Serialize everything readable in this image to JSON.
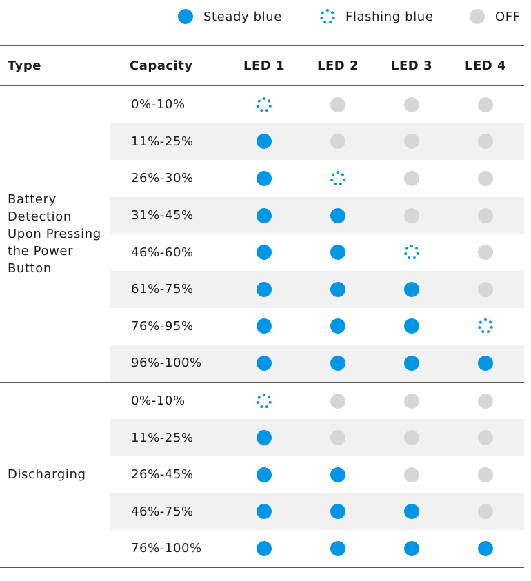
{
  "legend": {
    "steady": "Steady blue",
    "flashing": "Flashing blue",
    "off": "OFF"
  },
  "header": {
    "type": "Type",
    "capacity": "Capacity",
    "led1": "LED 1",
    "led2": "LED 2",
    "led3": "LED 3",
    "led4": "LED 4"
  },
  "colors": {
    "steady": "#0095e5",
    "off": "#d6d6d6",
    "shade": "#f1f1f1"
  },
  "groups": [
    {
      "type": "Battery Detection Upon Pressing the Power Button",
      "rows": [
        {
          "capacity": "0%-10%",
          "leds": [
            "flashing",
            "off",
            "off",
            "off"
          ]
        },
        {
          "capacity": "11%-25%",
          "leds": [
            "steady",
            "off",
            "off",
            "off"
          ]
        },
        {
          "capacity": "26%-30%",
          "leds": [
            "steady",
            "flashing",
            "off",
            "off"
          ]
        },
        {
          "capacity": "31%-45%",
          "leds": [
            "steady",
            "steady",
            "off",
            "off"
          ]
        },
        {
          "capacity": "46%-60%",
          "leds": [
            "steady",
            "steady",
            "flashing",
            "off"
          ]
        },
        {
          "capacity": "61%-75%",
          "leds": [
            "steady",
            "steady",
            "steady",
            "off"
          ]
        },
        {
          "capacity": "76%-95%",
          "leds": [
            "steady",
            "steady",
            "steady",
            "flashing"
          ]
        },
        {
          "capacity": "96%-100%",
          "leds": [
            "steady",
            "steady",
            "steady",
            "steady"
          ]
        }
      ]
    },
    {
      "type": "Discharging",
      "rows": [
        {
          "capacity": "0%-10%",
          "leds": [
            "flashing",
            "off",
            "off",
            "off"
          ]
        },
        {
          "capacity": "11%-25%",
          "leds": [
            "steady",
            "off",
            "off",
            "off"
          ]
        },
        {
          "capacity": "26%-45%",
          "leds": [
            "steady",
            "steady",
            "off",
            "off"
          ]
        },
        {
          "capacity": "46%-75%",
          "leds": [
            "steady",
            "steady",
            "steady",
            "off"
          ]
        },
        {
          "capacity": "76%-100%",
          "leds": [
            "steady",
            "steady",
            "steady",
            "steady"
          ]
        }
      ]
    }
  ]
}
